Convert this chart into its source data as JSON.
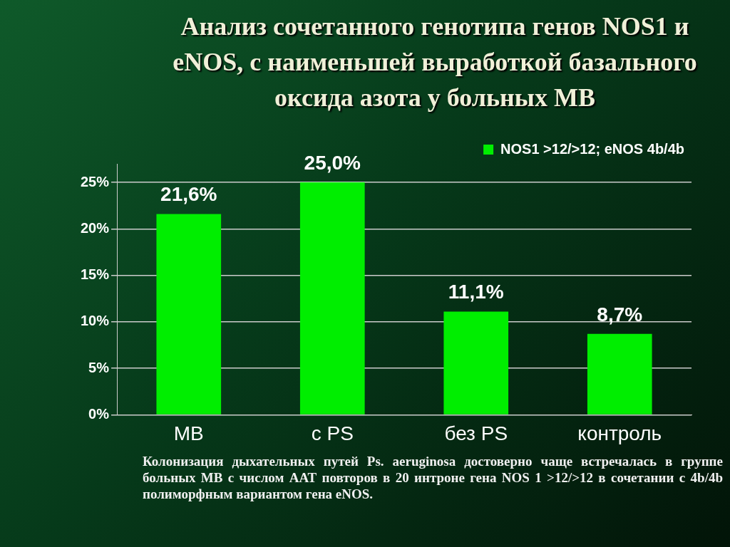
{
  "chart_data": {
    "type": "bar",
    "title": "Анализ сочетанного генотипа генов NOS1 и eNOS, с наименьшей выработкой базального оксида азота у больных МВ",
    "categories": [
      "МВ",
      "с PS",
      "без PS",
      "контроль"
    ],
    "series": [
      {
        "name": "NOS1 >12/>12; eNOS 4b/4b",
        "color": "#00ee00",
        "values": [
          21.6,
          25.0,
          11.1,
          8.7
        ],
        "value_labels": [
          "21,6%",
          "25,0%",
          "11,1%",
          "8,7%"
        ]
      }
    ],
    "ylim": [
      0,
      27
    ],
    "yticks": [
      {
        "value": 0,
        "label": "0%"
      },
      {
        "value": 5,
        "label": "5%"
      },
      {
        "value": 10,
        "label": "10%"
      },
      {
        "value": 15,
        "label": "15%"
      },
      {
        "value": 20,
        "label": "20%"
      },
      {
        "value": 25,
        "label": "25%"
      }
    ],
    "grid": "y",
    "legend": "top right",
    "annotations": [
      "Колонизация дыхательных путей Ps. aeruginosa достоверно чаще встречалась в группе больных МВ с числом ААТ повторов в 20 интроне гена NOS 1 >12/>12 в сочетании с 4b/4b полиморфным вариантом гена eNOS."
    ]
  }
}
